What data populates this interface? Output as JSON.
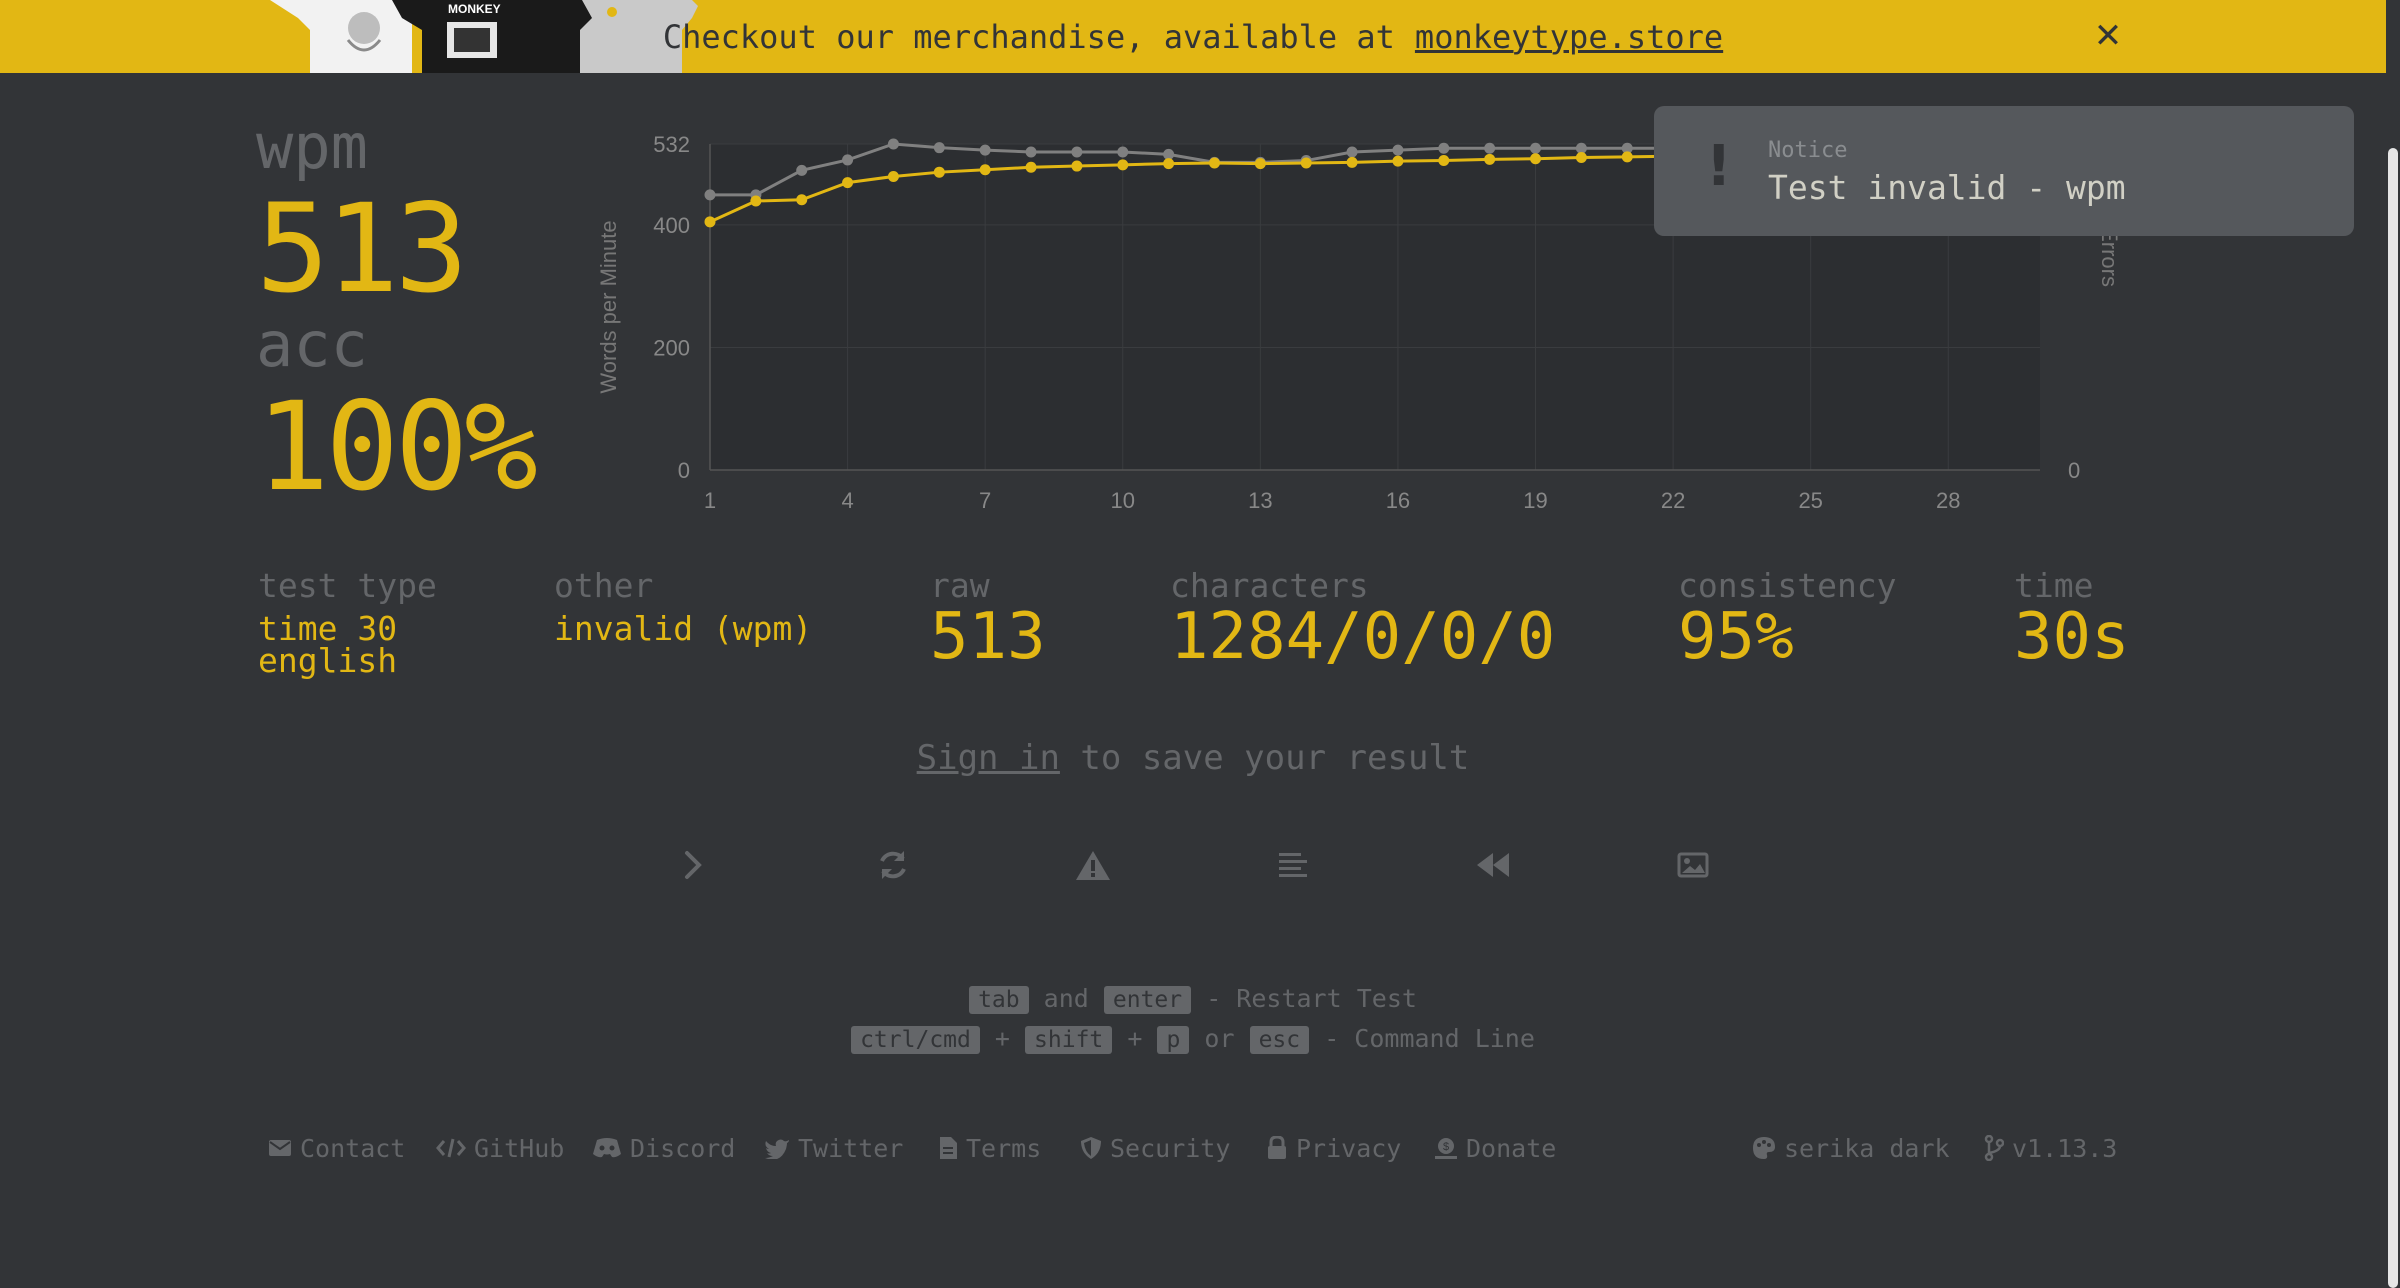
{
  "banner": {
    "text": "Checkout our merchandise, available at",
    "link": "monkeytype.store",
    "close_icon": "close-icon",
    "shirt_print": "MONKEY"
  },
  "result": {
    "wpm_label": "wpm",
    "wpm_value": "513",
    "acc_label": "acc",
    "acc_value": "100%"
  },
  "notice": {
    "icon": "!",
    "title": "Notice",
    "text": "Test invalid - wpm"
  },
  "stats": {
    "test_type_label": "test type",
    "test_type_line1": "time 30",
    "test_type_line2": "english",
    "other_label": "other",
    "other_value": "invalid (wpm)",
    "raw_label": "raw",
    "raw_value": "513",
    "characters_label": "characters",
    "characters_value": "1284/0/0/0",
    "consistency_label": "consistency",
    "consistency_value": "95%",
    "time_label": "time",
    "time_value": "30s"
  },
  "signin": {
    "link": "Sign in",
    "text": "to save your result"
  },
  "buttons": [
    {
      "icon": "chevron-right-icon"
    },
    {
      "icon": "refresh-icon"
    },
    {
      "icon": "warning-icon"
    },
    {
      "icon": "align-left-icon"
    },
    {
      "icon": "backward-icon"
    },
    {
      "icon": "image-icon"
    }
  ],
  "shortcuts": {
    "line1": {
      "key1": "tab",
      "and": "and",
      "key2": "enter",
      "desc": "- Restart Test"
    },
    "line2": {
      "key1": "ctrl/cmd",
      "plus1": "+",
      "key2": "shift",
      "plus2": "+",
      "key3": "p",
      "or": "or",
      "key4": "esc",
      "desc": "- Command Line"
    }
  },
  "footer": {
    "contact": "Contact",
    "github": "GitHub",
    "discord": "Discord",
    "twitter": "Twitter",
    "terms": "Terms",
    "security": "Security",
    "privacy": "Privacy",
    "donate": "Donate",
    "theme": "serika dark",
    "version": "v1.13.3"
  },
  "colors": {
    "background": "#323437",
    "accent": "#e2b714",
    "sub": "#646669",
    "raw_line": "#808080"
  },
  "chart_data": {
    "type": "line",
    "ylabel": "Words per Minute",
    "y2label": "Errors",
    "ylim": [
      0,
      532
    ],
    "yticks": [
      0,
      200,
      400,
      532
    ],
    "y2ticks": [
      0
    ],
    "xticks": [
      1,
      4,
      7,
      10,
      13,
      16,
      19,
      22,
      25,
      28
    ],
    "xlim": [
      1,
      30
    ],
    "series": [
      {
        "role": "raw",
        "color": "#808080",
        "x": [
          1,
          2,
          3,
          4,
          5,
          6,
          7,
          8,
          9,
          10,
          11,
          12,
          13,
          14,
          15,
          16,
          17,
          18,
          19,
          20,
          21,
          22
        ],
        "values": [
          449,
          449,
          489,
          506,
          532,
          526,
          522,
          519,
          519,
          519,
          515,
          502,
          502,
          505,
          519,
          522,
          525,
          525,
          525,
          525,
          525,
          525
        ]
      },
      {
        "role": "wpm",
        "color": "#e2b714",
        "x": [
          1,
          2,
          3,
          4,
          5,
          6,
          7,
          8,
          9,
          10,
          11,
          12,
          13,
          14,
          15,
          16,
          17,
          18,
          19,
          20,
          21,
          22
        ],
        "values": [
          405,
          439,
          441,
          469,
          479,
          486,
          490,
          494,
          496,
          498,
          500,
          501,
          500,
          501,
          502,
          504,
          505,
          507,
          508,
          510,
          511,
          512
        ]
      }
    ]
  }
}
